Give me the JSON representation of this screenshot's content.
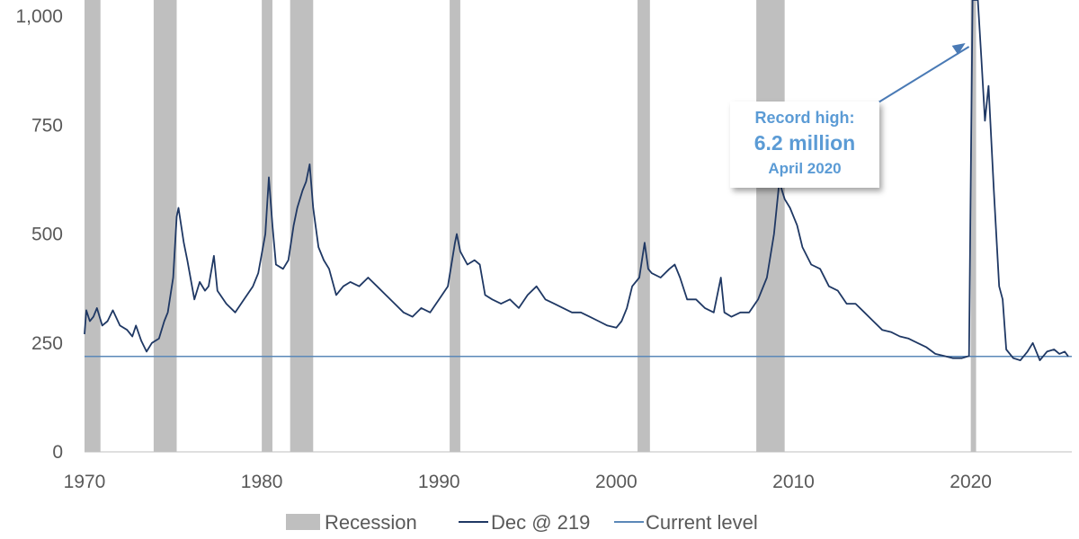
{
  "chart_data": {
    "type": "line",
    "title": "",
    "xlabel": "",
    "ylabel": "",
    "xlim": [
      1970,
      2025.7
    ],
    "ylim": [
      0,
      1000
    ],
    "x_ticks": [
      "1970",
      "1980",
      "1990",
      "2000",
      "2010",
      "2020"
    ],
    "y_ticks": [
      "0",
      "250",
      "500",
      "750",
      "1,000"
    ],
    "legend": {
      "position": "bottom",
      "items": [
        "Recession",
        "Dec @ 219",
        "Current level"
      ]
    },
    "recessions": [
      [
        1970.0,
        1970.9
      ],
      [
        1973.9,
        1975.2
      ],
      [
        1980.0,
        1980.6
      ],
      [
        1981.6,
        1982.9
      ],
      [
        1990.6,
        1991.2
      ],
      [
        2001.2,
        2001.9
      ],
      [
        2007.9,
        2009.5
      ],
      [
        2020.0,
        2020.3
      ]
    ],
    "current_level": 219,
    "series": [
      {
        "name": "Dec @ 219",
        "color": "#1f3864",
        "points": [
          [
            1970.0,
            270
          ],
          [
            1970.1,
            325
          ],
          [
            1970.3,
            300
          ],
          [
            1970.5,
            310
          ],
          [
            1970.7,
            330
          ],
          [
            1971.0,
            290
          ],
          [
            1971.3,
            300
          ],
          [
            1971.6,
            325
          ],
          [
            1972.0,
            290
          ],
          [
            1972.4,
            280
          ],
          [
            1972.7,
            265
          ],
          [
            1972.9,
            290
          ],
          [
            1973.2,
            255
          ],
          [
            1973.5,
            230
          ],
          [
            1973.8,
            250
          ],
          [
            1974.2,
            260
          ],
          [
            1974.5,
            300
          ],
          [
            1974.7,
            320
          ],
          [
            1975.0,
            400
          ],
          [
            1975.2,
            540
          ],
          [
            1975.3,
            560
          ],
          [
            1975.6,
            480
          ],
          [
            1975.8,
            440
          ],
          [
            1976.2,
            350
          ],
          [
            1976.5,
            390
          ],
          [
            1976.8,
            370
          ],
          [
            1977.0,
            380
          ],
          [
            1977.3,
            450
          ],
          [
            1977.5,
            370
          ],
          [
            1978.0,
            340
          ],
          [
            1978.5,
            320
          ],
          [
            1979.0,
            350
          ],
          [
            1979.5,
            380
          ],
          [
            1979.8,
            410
          ],
          [
            1980.2,
            500
          ],
          [
            1980.4,
            630
          ],
          [
            1980.6,
            520
          ],
          [
            1980.8,
            430
          ],
          [
            1981.2,
            420
          ],
          [
            1981.5,
            440
          ],
          [
            1981.8,
            520
          ],
          [
            1982.0,
            560
          ],
          [
            1982.3,
            600
          ],
          [
            1982.5,
            620
          ],
          [
            1982.7,
            660
          ],
          [
            1982.9,
            560
          ],
          [
            1983.2,
            470
          ],
          [
            1983.5,
            440
          ],
          [
            1983.8,
            420
          ],
          [
            1984.2,
            360
          ],
          [
            1984.6,
            380
          ],
          [
            1985.0,
            390
          ],
          [
            1985.5,
            380
          ],
          [
            1986.0,
            400
          ],
          [
            1986.5,
            380
          ],
          [
            1987.0,
            360
          ],
          [
            1987.5,
            340
          ],
          [
            1988.0,
            320
          ],
          [
            1988.5,
            310
          ],
          [
            1989.0,
            330
          ],
          [
            1989.5,
            320
          ],
          [
            1990.0,
            350
          ],
          [
            1990.5,
            380
          ],
          [
            1990.9,
            480
          ],
          [
            1991.0,
            500
          ],
          [
            1991.2,
            460
          ],
          [
            1991.6,
            430
          ],
          [
            1992.0,
            440
          ],
          [
            1992.3,
            430
          ],
          [
            1992.6,
            360
          ],
          [
            1993.0,
            350
          ],
          [
            1993.5,
            340
          ],
          [
            1994.0,
            350
          ],
          [
            1994.5,
            330
          ],
          [
            1995.0,
            360
          ],
          [
            1995.5,
            380
          ],
          [
            1996.0,
            350
          ],
          [
            1996.5,
            340
          ],
          [
            1997.0,
            330
          ],
          [
            1997.5,
            320
          ],
          [
            1998.0,
            320
          ],
          [
            1998.5,
            310
          ],
          [
            1999.0,
            300
          ],
          [
            1999.5,
            290
          ],
          [
            2000.0,
            285
          ],
          [
            2000.3,
            300
          ],
          [
            2000.6,
            330
          ],
          [
            2000.9,
            380
          ],
          [
            2001.3,
            400
          ],
          [
            2001.6,
            480
          ],
          [
            2001.8,
            420
          ],
          [
            2002.0,
            410
          ],
          [
            2002.5,
            400
          ],
          [
            2003.0,
            420
          ],
          [
            2003.3,
            430
          ],
          [
            2003.6,
            400
          ],
          [
            2004.0,
            350
          ],
          [
            2004.5,
            350
          ],
          [
            2005.0,
            330
          ],
          [
            2005.5,
            320
          ],
          [
            2005.9,
            400
          ],
          [
            2006.1,
            320
          ],
          [
            2006.5,
            310
          ],
          [
            2007.0,
            320
          ],
          [
            2007.5,
            320
          ],
          [
            2008.0,
            350
          ],
          [
            2008.5,
            400
          ],
          [
            2008.9,
            500
          ],
          [
            2009.2,
            620
          ],
          [
            2009.5,
            580
          ],
          [
            2009.8,
            560
          ],
          [
            2010.2,
            520
          ],
          [
            2010.5,
            470
          ],
          [
            2011.0,
            430
          ],
          [
            2011.5,
            420
          ],
          [
            2012.0,
            380
          ],
          [
            2012.5,
            370
          ],
          [
            2013.0,
            340
          ],
          [
            2013.5,
            340
          ],
          [
            2014.0,
            320
          ],
          [
            2014.5,
            300
          ],
          [
            2015.0,
            280
          ],
          [
            2015.5,
            275
          ],
          [
            2016.0,
            265
          ],
          [
            2016.5,
            260
          ],
          [
            2017.0,
            250
          ],
          [
            2017.5,
            240
          ],
          [
            2018.0,
            225
          ],
          [
            2018.5,
            220
          ],
          [
            2019.0,
            215
          ],
          [
            2019.5,
            215
          ],
          [
            2019.9,
            220
          ],
          [
            2020.1,
            1000
          ],
          [
            2020.25,
            1000
          ],
          [
            2020.4,
            1000
          ],
          [
            2020.6,
            900
          ],
          [
            2020.8,
            760
          ],
          [
            2021.0,
            840
          ],
          [
            2021.3,
            600
          ],
          [
            2021.6,
            380
          ],
          [
            2021.8,
            350
          ],
          [
            2022.0,
            235
          ],
          [
            2022.4,
            215
          ],
          [
            2022.8,
            210
          ],
          [
            2023.2,
            230
          ],
          [
            2023.5,
            250
          ],
          [
            2023.9,
            210
          ],
          [
            2024.3,
            230
          ],
          [
            2024.7,
            235
          ],
          [
            2025.0,
            225
          ],
          [
            2025.3,
            230
          ],
          [
            2025.5,
            219
          ]
        ]
      },
      {
        "name": "Current level",
        "color": "#5b88b8",
        "value": 219
      }
    ],
    "annotations": [
      {
        "line1": "Record high:",
        "line2": "6.2 million",
        "line3": "April 2020"
      }
    ]
  }
}
